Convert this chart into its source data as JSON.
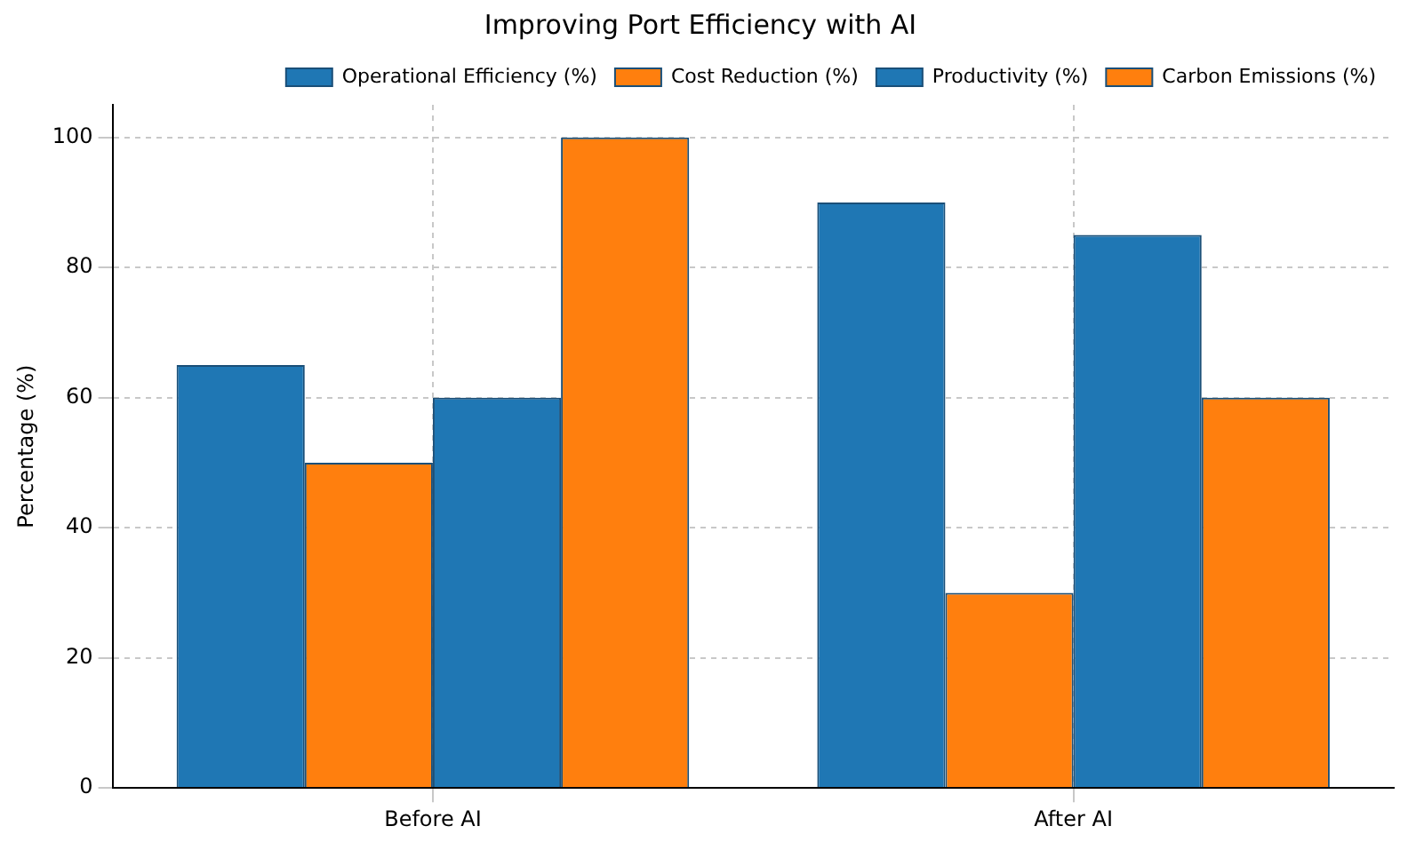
{
  "chart_data": {
    "type": "bar",
    "title": "Improving Port Efficiency with AI",
    "ylabel": "Percentage (%)",
    "categories": [
      "Before AI",
      "After AI"
    ],
    "series": [
      {
        "name": "Operational Efficiency (%)",
        "color": "#1f77b4",
        "values": [
          65,
          90
        ]
      },
      {
        "name": "Cost Reduction (%)",
        "color": "#ff7f0e",
        "values": [
          50,
          30
        ]
      },
      {
        "name": "Productivity (%)",
        "color": "#1f77b4",
        "values": [
          60,
          85
        ]
      },
      {
        "name": "Carbon Emissions (%)",
        "color": "#ff7f0e",
        "values": [
          100,
          60
        ]
      }
    ],
    "ylim": [
      0,
      105
    ],
    "yticks": [
      0,
      20,
      40,
      60,
      80,
      100
    ],
    "grid": true,
    "legend": "top right"
  }
}
